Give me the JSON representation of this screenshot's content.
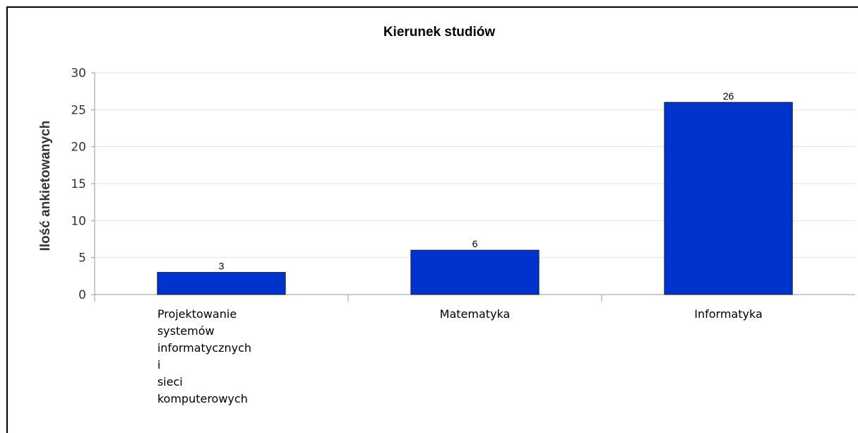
{
  "chart_data": {
    "type": "bar",
    "title": "Kierunek studiów",
    "ylabel": "Ilość ankietowanych",
    "xlabel": "",
    "ylim": [
      0,
      30
    ],
    "yticks": [
      0,
      5,
      10,
      15,
      20,
      25,
      30
    ],
    "categories": [
      [
        "Projektowanie",
        "systemów",
        "informatycznych",
        "i",
        "sieci",
        "komputerowych"
      ],
      [
        "Matematyka"
      ],
      [
        "Informatyka"
      ]
    ],
    "values": [
      3,
      6,
      26
    ],
    "data_labels": [
      "3",
      "6",
      "26"
    ],
    "bar_color": "#0033cc",
    "grid": true,
    "legend": "none"
  }
}
